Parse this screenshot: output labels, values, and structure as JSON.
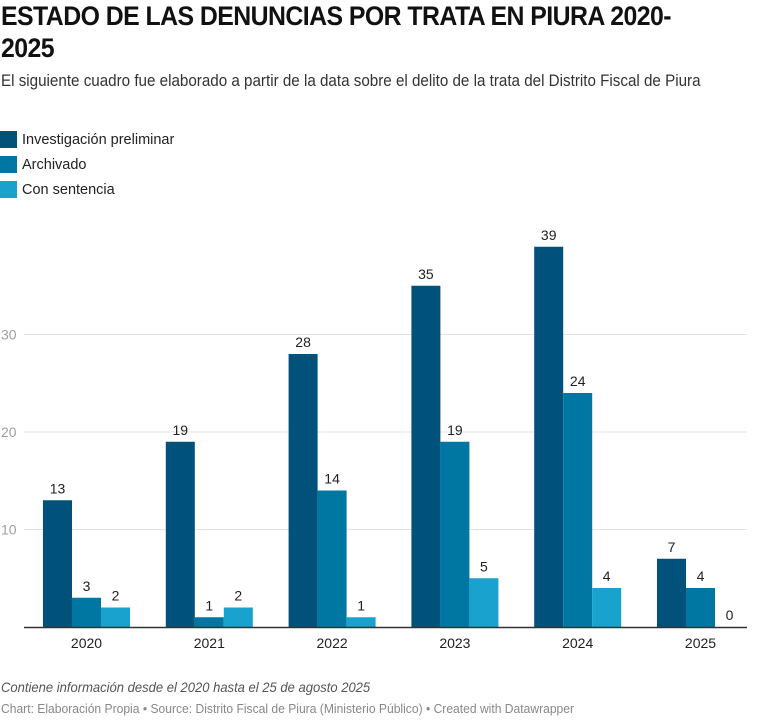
{
  "chart_data": {
    "type": "bar",
    "title": "ESTADO DE LAS DENUNCIAS POR TRATA EN PIURA 2020-2025",
    "subtitle": "El siguiente cuadro fue elaborado a partir de la data sobre el delito de la trata del Distrito Fiscal de Piura",
    "categories": [
      "2020",
      "2021",
      "2022",
      "2023",
      "2024",
      "2025"
    ],
    "series": [
      {
        "name": "Investigación preliminar",
        "color": "#00527a",
        "values": [
          13,
          19,
          28,
          35,
          39,
          7
        ]
      },
      {
        "name": "Archivado",
        "color": "#0077a2",
        "values": [
          3,
          1,
          14,
          19,
          24,
          4
        ]
      },
      {
        "name": "Con sentencia",
        "color": "#1aa2cf",
        "values": [
          2,
          2,
          1,
          5,
          4,
          0
        ]
      }
    ],
    "yticks": [
      10,
      20,
      30
    ],
    "ylim": [
      0,
      40
    ],
    "grid": true,
    "legend_position": "top-left",
    "xlabel": "",
    "ylabel": "",
    "notes": "Contiene información desde el 2020 hasta el 25 de agosto 2025",
    "footer": {
      "chart_label": "Chart:",
      "chart_value": "Elaboración Propia",
      "source_label": "Source:",
      "source_value": "Distrito Fiscal de Piura (Ministerio Público)",
      "credit": "Created with Datawrapper",
      "separator": "•"
    }
  }
}
